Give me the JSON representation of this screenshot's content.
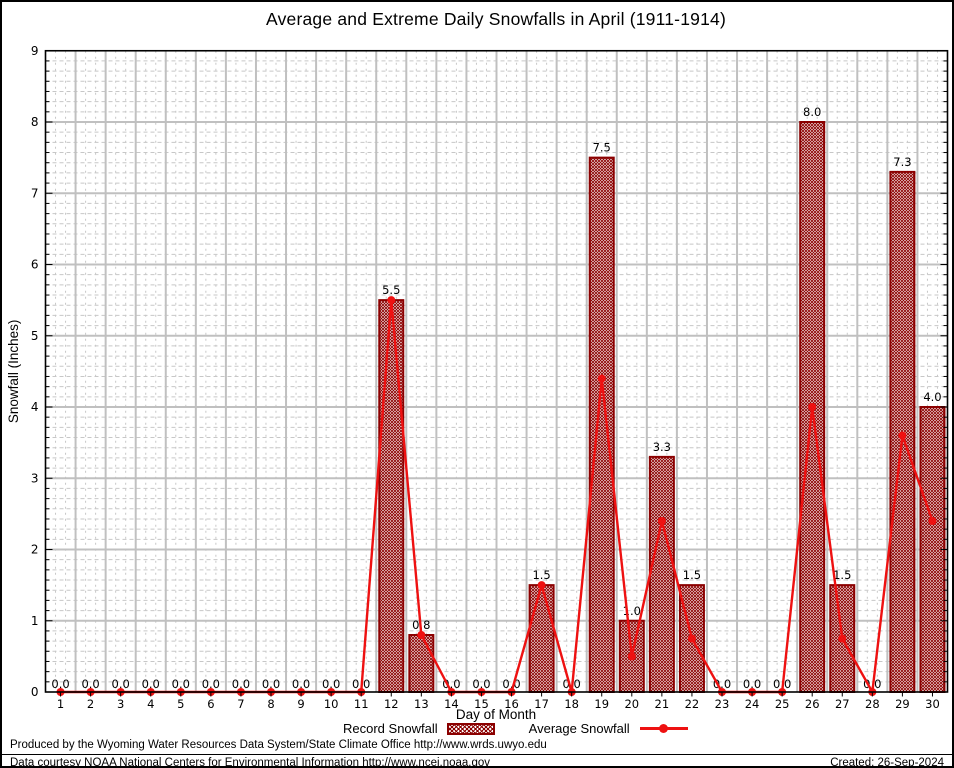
{
  "title": "Average and Extreme Daily Snowfalls in April (1911-1914)",
  "axes": {
    "ylabel": "Snowfall (Inches)",
    "xlabel": "Day of Month"
  },
  "legend": {
    "record": "Record Snowfall",
    "average": "Average Snowfall"
  },
  "footer": {
    "produced": "Produced by the Wyoming Water Resources Data System/State Climate Office http://www.wrds.uwyo.edu",
    "courtesy": "Data courtesy NOAA National Centers for Environmental Information http://www.ncei.noaa.gov",
    "created": "Created: 26-Sep-2024"
  },
  "colors": {
    "bar": "#8b0000",
    "line": "#ee1111",
    "grid_major": "#c0c0c0",
    "grid_minor": "#c7c7c7",
    "frame": "#000000"
  },
  "chart_data": {
    "type": "bar",
    "title": "Average and Extreme Daily Snowfalls in April (1911-1914)",
    "xlabel": "Day of Month",
    "ylabel": "Snowfall (Inches)",
    "categories": [
      1,
      2,
      3,
      4,
      5,
      6,
      7,
      8,
      9,
      10,
      11,
      12,
      13,
      14,
      15,
      16,
      17,
      18,
      19,
      20,
      21,
      22,
      23,
      24,
      25,
      26,
      27,
      28,
      29,
      30
    ],
    "series": [
      {
        "name": "Record Snowfall",
        "type": "bar",
        "values": [
          0,
          0,
          0,
          0,
          0,
          0,
          0,
          0,
          0,
          0,
          0,
          5.5,
          0.8,
          0,
          0,
          0,
          1.5,
          0,
          7.5,
          1.0,
          3.3,
          1.5,
          0,
          0,
          0,
          8.0,
          1.5,
          0,
          7.3,
          4.0
        ]
      },
      {
        "name": "Average Snowfall",
        "type": "line",
        "values": [
          0,
          0,
          0,
          0,
          0,
          0,
          0,
          0,
          0,
          0,
          0,
          5.5,
          0.8,
          0,
          0,
          0,
          1.5,
          0,
          4.4,
          0.5,
          2.4,
          0.75,
          0,
          0,
          0,
          4.0,
          0.75,
          0,
          3.6,
          2.4
        ]
      }
    ],
    "bar_value_labels": "every day, one decimal (0.0 shown on zero days)",
    "ylim": [
      0,
      9
    ],
    "yticks": [
      0,
      1,
      2,
      3,
      4,
      5,
      6,
      7,
      8,
      9
    ],
    "grid": "major solid gray; fine dotted minor mesh",
    "legend_position": "bottom center"
  }
}
